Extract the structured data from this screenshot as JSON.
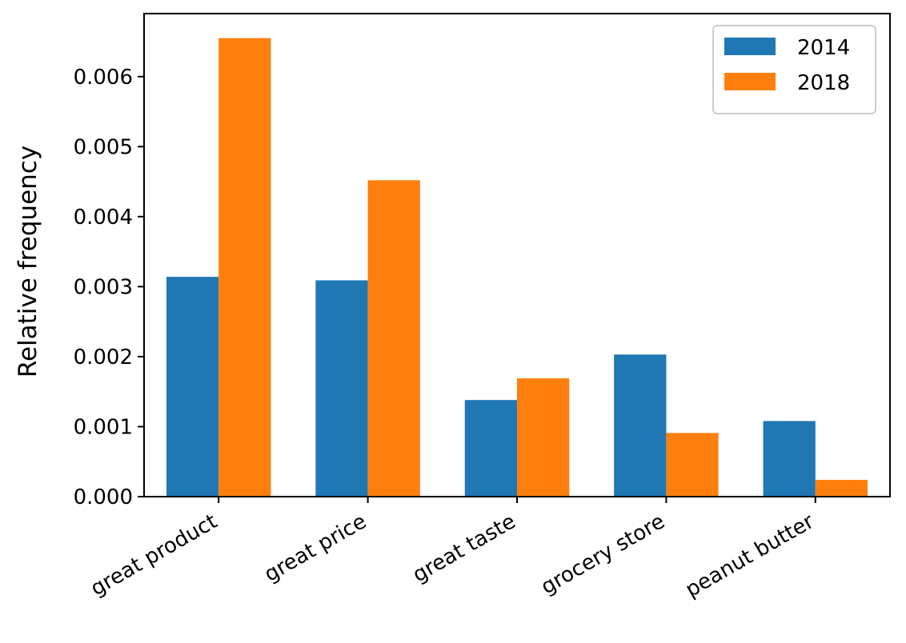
{
  "chart_data": {
    "type": "bar",
    "title": "",
    "xlabel": "",
    "ylabel": "Relative frequency",
    "categories": [
      "great product",
      "great price",
      "great taste",
      "grocery store",
      "peanut butter"
    ],
    "series": [
      {
        "name": "2014",
        "values": [
          0.00314,
          0.00309,
          0.00138,
          0.00203,
          0.00108
        ]
      },
      {
        "name": "2018",
        "values": [
          0.00655,
          0.00452,
          0.00169,
          0.00091,
          0.00024
        ]
      }
    ],
    "colors": [
      "#1f77b4",
      "#ff7f0e"
    ],
    "ylim": [
      0,
      0.0069
    ],
    "yticks": [
      "0.000",
      "0.001",
      "0.002",
      "0.003",
      "0.004",
      "0.005",
      "0.006"
    ],
    "grid": false,
    "legend_position": "top-right"
  }
}
